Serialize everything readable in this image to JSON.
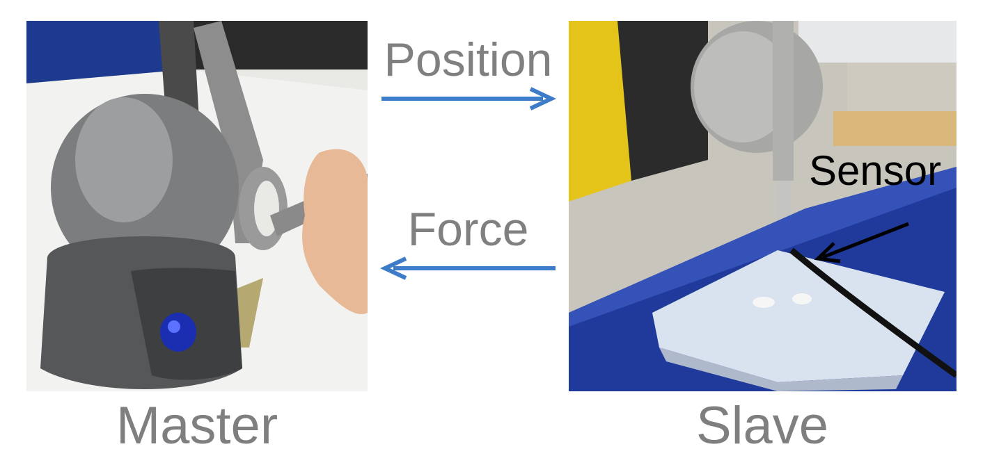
{
  "labels": {
    "position": "Position",
    "force": "Force",
    "sensor": "Sensor",
    "master": "Master",
    "slave": "Slave"
  },
  "colors": {
    "arrow_blue": "#3d7cc9",
    "label_gray": "#808080",
    "sensor_black": "#000000"
  }
}
